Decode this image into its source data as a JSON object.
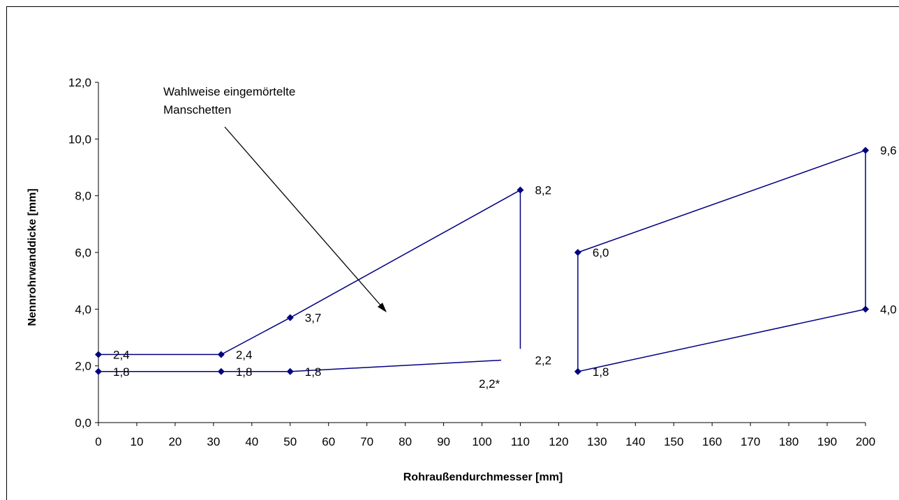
{
  "chart_data": {
    "type": "line",
    "xlabel": "Rohraußendurchmesser [mm]",
    "ylabel": "Nennrohrwanddicke [mm]",
    "xlim": [
      0,
      200
    ],
    "ylim": [
      0,
      12
    ],
    "x_ticks": [
      "0",
      "10",
      "20",
      "30",
      "40",
      "50",
      "60",
      "70",
      "80",
      "90",
      "100",
      "110",
      "120",
      "130",
      "140",
      "150",
      "160",
      "170",
      "180",
      "190",
      "200"
    ],
    "y_ticks": [
      "0,0",
      "2,0",
      "4,0",
      "6,0",
      "8,0",
      "10,0",
      "12,0"
    ],
    "grid": false,
    "legend": "none",
    "line_color": "#000080",
    "series": [
      {
        "points": [
          [
            0,
            1.8
          ],
          [
            32,
            1.8
          ],
          [
            50,
            1.8
          ],
          [
            105,
            2.2
          ]
        ],
        "marker_count": 3
      },
      {
        "points": [
          [
            0,
            2.4
          ],
          [
            32,
            2.4
          ],
          [
            50,
            3.7
          ],
          [
            110,
            8.2
          ],
          [
            110,
            2.6
          ]
        ],
        "marker_count": 4
      },
      {
        "points": [
          [
            125,
            6.0
          ],
          [
            200,
            9.6
          ],
          [
            200,
            4.0
          ],
          [
            125,
            1.8
          ],
          [
            125,
            6.0
          ]
        ],
        "marker_count": 4
      }
    ],
    "data_labels": [
      {
        "x": 0,
        "y": 2.4,
        "text": "2,4"
      },
      {
        "x": 0,
        "y": 1.8,
        "text": "1,8"
      },
      {
        "x": 32,
        "y": 2.4,
        "text": "2,4"
      },
      {
        "x": 32,
        "y": 1.8,
        "text": "1,8"
      },
      {
        "x": 50,
        "y": 1.8,
        "text": "1,8"
      },
      {
        "x": 50,
        "y": 3.7,
        "text": "3,7"
      },
      {
        "x": 110,
        "y": 8.2,
        "text": "8,2"
      },
      {
        "x": 110,
        "y": 2.2,
        "text": "2,2"
      },
      {
        "x": 125,
        "y": 6.0,
        "text": "6,0"
      },
      {
        "x": 125,
        "y": 1.8,
        "text": "1,8"
      },
      {
        "x": 200,
        "y": 9.6,
        "text": "9,6"
      },
      {
        "x": 200,
        "y": 4.0,
        "text": "4,0"
      }
    ],
    "annotations": {
      "footnote_label": "2,2*",
      "arrow_text": [
        "Wahlweise eingemörtelte",
        "Manschetten"
      ]
    }
  }
}
